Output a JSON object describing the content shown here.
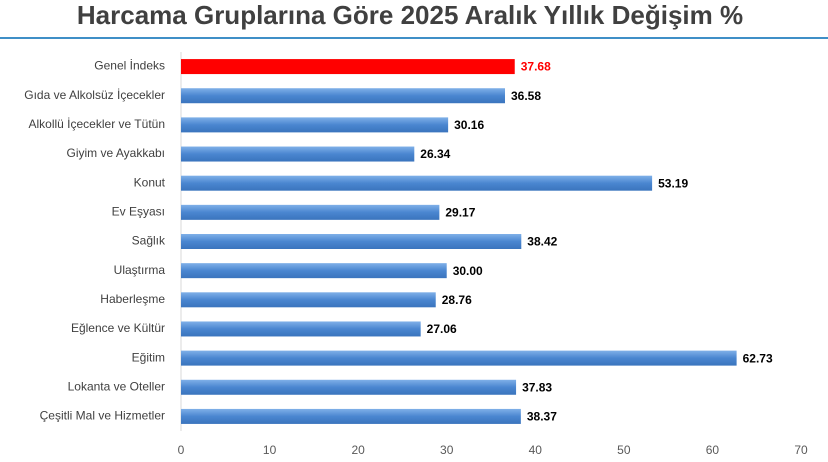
{
  "chart_data": {
    "type": "barh",
    "title": "Harcama Gruplarına Göre 2025 Aralık Yıllık Değişim %",
    "categories": [
      "Genel İndeks",
      "Gıda ve Alkolsüz İçecekler",
      "Alkollü İçecekler ve Tütün",
      "Giyim ve Ayakkabı",
      "Konut",
      "Ev Eşyası",
      "Sağlık",
      "Ulaştırma",
      "Haberleşme",
      "Eğlence ve Kültür",
      "Eğitim",
      "Lokanta ve Oteller",
      "Çeşitli Mal ve Hizmetler"
    ],
    "values": [
      37.68,
      36.58,
      30.16,
      26.34,
      53.19,
      29.17,
      38.42,
      30.0,
      28.76,
      27.06,
      62.73,
      37.83,
      38.37
    ],
    "value_labels": [
      "37.68",
      "36.58",
      "30.16",
      "26.34",
      "53.19",
      "29.17",
      "38.42",
      "30.00",
      "28.76",
      "27.06",
      "62.73",
      "37.83",
      "38.37"
    ],
    "colors": [
      "#ff0000",
      "#4a86d0",
      "#4a86d0",
      "#4a86d0",
      "#4a86d0",
      "#4a86d0",
      "#4a86d0",
      "#4a86d0",
      "#4a86d0",
      "#4a86d0",
      "#4a86d0",
      "#4a86d0",
      "#4a86d0"
    ],
    "value_label_colors": [
      "#ff0000",
      "#000000",
      "#000000",
      "#000000",
      "#000000",
      "#000000",
      "#000000",
      "#000000",
      "#000000",
      "#000000",
      "#000000",
      "#000000",
      "#000000"
    ],
    "xlim": [
      0,
      70
    ],
    "xticks": [
      0,
      10,
      20,
      30,
      40,
      50,
      60,
      70
    ],
    "grid": false
  }
}
